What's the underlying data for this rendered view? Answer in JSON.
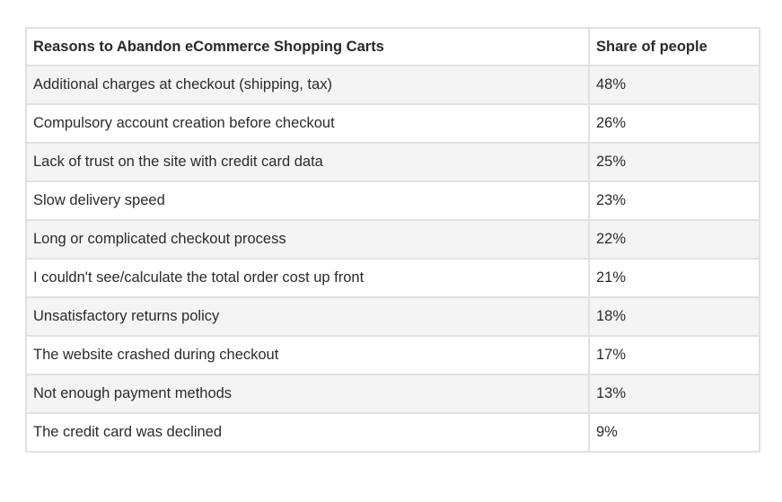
{
  "table": {
    "headers": [
      "Reasons to Abandon eCommerce Shopping Carts",
      "Share of people"
    ],
    "rows": [
      {
        "reason": "Additional charges at checkout (shipping, tax)",
        "share": "48%"
      },
      {
        "reason": "Compulsory account creation before checkout",
        "share": "26%"
      },
      {
        "reason": "Lack of trust on the site with credit card data",
        "share": "25%"
      },
      {
        "reason": "Slow delivery speed",
        "share": "23%"
      },
      {
        "reason": "Long or complicated checkout process",
        "share": "22%"
      },
      {
        "reason": "I couldn't see/calculate the total order cost up front",
        "share": "21%"
      },
      {
        "reason": "Unsatisfactory returns policy",
        "share": "18%"
      },
      {
        "reason": "The website crashed during checkout",
        "share": "17%"
      },
      {
        "reason": "Not enough payment methods",
        "share": "13%"
      },
      {
        "reason": "The credit card was declined",
        "share": "9%"
      }
    ]
  },
  "colors": {
    "border": "#e1e1e1",
    "stripe": "#f4f4f4",
    "text": "#2b2b2b"
  }
}
